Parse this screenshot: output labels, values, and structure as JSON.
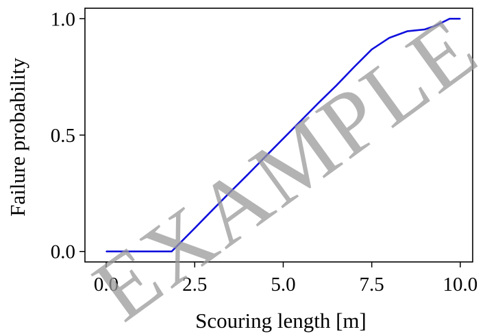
{
  "chart_data": {
    "type": "line",
    "xlabel": "Scouring length [m]",
    "ylabel": "Failure probability",
    "xlim": [
      -0.6,
      10.35
    ],
    "ylim": [
      -0.045,
      1.045
    ],
    "xticks": [
      "0.0",
      "2.5",
      "5.0",
      "7.5",
      "10.0"
    ],
    "yticks": [
      "0.0",
      "0.5",
      "1.0"
    ],
    "grid": false,
    "line_color": "#1010dd",
    "series": [
      {
        "x": [
          0.0,
          0.5,
          1.0,
          1.5,
          1.85,
          2.5,
          3.0,
          3.5,
          4.0,
          4.5,
          5.0,
          5.5,
          6.0,
          6.5,
          7.0,
          7.5,
          8.0,
          8.5,
          9.0,
          9.3,
          9.5,
          9.7,
          10.0
        ],
        "y": [
          0.0,
          0.0,
          0.0,
          0.0,
          0.0,
          0.1,
          0.178,
          0.255,
          0.331,
          0.408,
          0.485,
          0.562,
          0.639,
          0.713,
          0.792,
          0.868,
          0.918,
          0.946,
          0.954,
          0.97,
          0.985,
          1.0,
          1.0
        ]
      }
    ],
    "watermark": "EXAMPLE"
  }
}
